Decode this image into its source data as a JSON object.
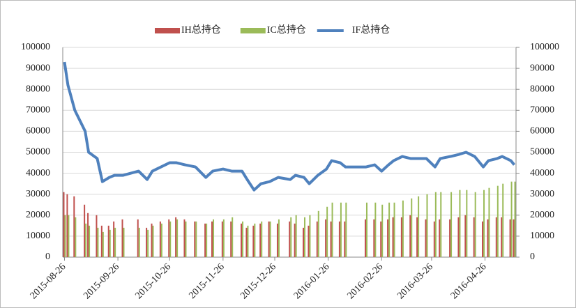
{
  "chart_data": {
    "type": "bar-line",
    "x": [
      "2015-08-26",
      "2015-08-28",
      "2015-09-01",
      "2015-09-07",
      "2015-09-09",
      "2015-09-14",
      "2015-09-17",
      "2015-09-21",
      "2015-09-24",
      "2015-09-29",
      "2015-10-08",
      "2015-10-13",
      "2015-10-16",
      "2015-10-21",
      "2015-10-26",
      "2015-10-30",
      "2015-11-04",
      "2015-11-10",
      "2015-11-16",
      "2015-11-20",
      "2015-11-26",
      "2015-12-01",
      "2015-12-07",
      "2015-12-10",
      "2015-12-14",
      "2015-12-18",
      "2015-12-23",
      "2015-12-28",
      "2016-01-04",
      "2016-01-07",
      "2016-01-12",
      "2016-01-15",
      "2016-01-20",
      "2016-01-25",
      "2016-01-28",
      "2016-02-02",
      "2016-02-05",
      "2016-02-17",
      "2016-02-22",
      "2016-02-26",
      "2016-03-01",
      "2016-03-04",
      "2016-03-09",
      "2016-03-14",
      "2016-03-18",
      "2016-03-23",
      "2016-03-28",
      "2016-03-31",
      "2016-04-06",
      "2016-04-11",
      "2016-04-15",
      "2016-04-20",
      "2016-04-25",
      "2016-04-28",
      "2016-05-03",
      "2016-05-06",
      "2016-05-11",
      "2016-05-13"
    ],
    "series": [
      {
        "name": "IH总持仓",
        "type": "bar",
        "color": "#c0504d",
        "axis": "y",
        "values": [
          31000,
          30000,
          29000,
          25000,
          21000,
          20000,
          15000,
          15000,
          17000,
          18000,
          18000,
          14000,
          16000,
          17000,
          18000,
          19000,
          18000,
          17000,
          16000,
          17000,
          17000,
          17000,
          16000,
          14000,
          15000,
          16000,
          17000,
          16000,
          17000,
          16000,
          14000,
          15000,
          17000,
          18000,
          17000,
          17000,
          17000,
          18000,
          18000,
          17000,
          18000,
          19000,
          19000,
          20000,
          19000,
          18000,
          17000,
          18000,
          18000,
          19000,
          20000,
          19000,
          17000,
          18000,
          19000,
          19000,
          18000,
          18000
        ]
      },
      {
        "name": "IC总持仓",
        "type": "bar",
        "color": "#9bbb59",
        "axis": "y",
        "values": [
          20000,
          20000,
          19000,
          16000,
          15000,
          14000,
          12000,
          13000,
          14000,
          14000,
          14000,
          13000,
          15000,
          16000,
          17000,
          18000,
          17000,
          17000,
          16000,
          18000,
          18000,
          19000,
          17000,
          15000,
          16000,
          17000,
          17000,
          18000,
          19000,
          20000,
          19000,
          20000,
          22000,
          24000,
          26000,
          26000,
          26000,
          26000,
          26000,
          25000,
          26000,
          26000,
          27000,
          28000,
          29000,
          30000,
          31000,
          31000,
          31000,
          32000,
          32000,
          31000,
          32000,
          33000,
          34000,
          35000,
          36000,
          36000
        ]
      },
      {
        "name": "IF总持仓",
        "type": "line",
        "color": "#4f81bd",
        "axis": "y2",
        "values": [
          93000,
          82000,
          70000,
          60000,
          50000,
          47000,
          36000,
          38000,
          39000,
          39000,
          41000,
          37000,
          41000,
          43000,
          45000,
          45000,
          44000,
          43000,
          38000,
          41000,
          42000,
          41000,
          41000,
          37000,
          32000,
          35000,
          36000,
          38000,
          37000,
          39000,
          38000,
          35000,
          39000,
          42000,
          46000,
          45000,
          43000,
          43000,
          44000,
          41000,
          44000,
          46000,
          48000,
          47000,
          47000,
          47000,
          43000,
          47000,
          48000,
          49000,
          50000,
          48000,
          43000,
          46000,
          47000,
          48000,
          46000,
          44000
        ]
      }
    ],
    "xlim": [
      "2015-08-25",
      "2016-05-14"
    ],
    "xticks": [
      "2015-08-26",
      "2015-09-26",
      "2015-10-26",
      "2015-11-26",
      "2015-12-26",
      "2016-01-26",
      "2016-02-26",
      "2016-03-26",
      "2016-04-26"
    ],
    "ylim": [
      0,
      100000
    ],
    "yticks": [
      0,
      10000,
      20000,
      30000,
      40000,
      50000,
      60000,
      70000,
      80000,
      90000,
      100000
    ],
    "y2lim": [
      0,
      100000
    ],
    "y2ticks": [
      0,
      10000,
      20000,
      30000,
      40000,
      50000,
      60000,
      70000,
      80000,
      90000,
      100000
    ],
    "grid": true,
    "legend": "top"
  }
}
